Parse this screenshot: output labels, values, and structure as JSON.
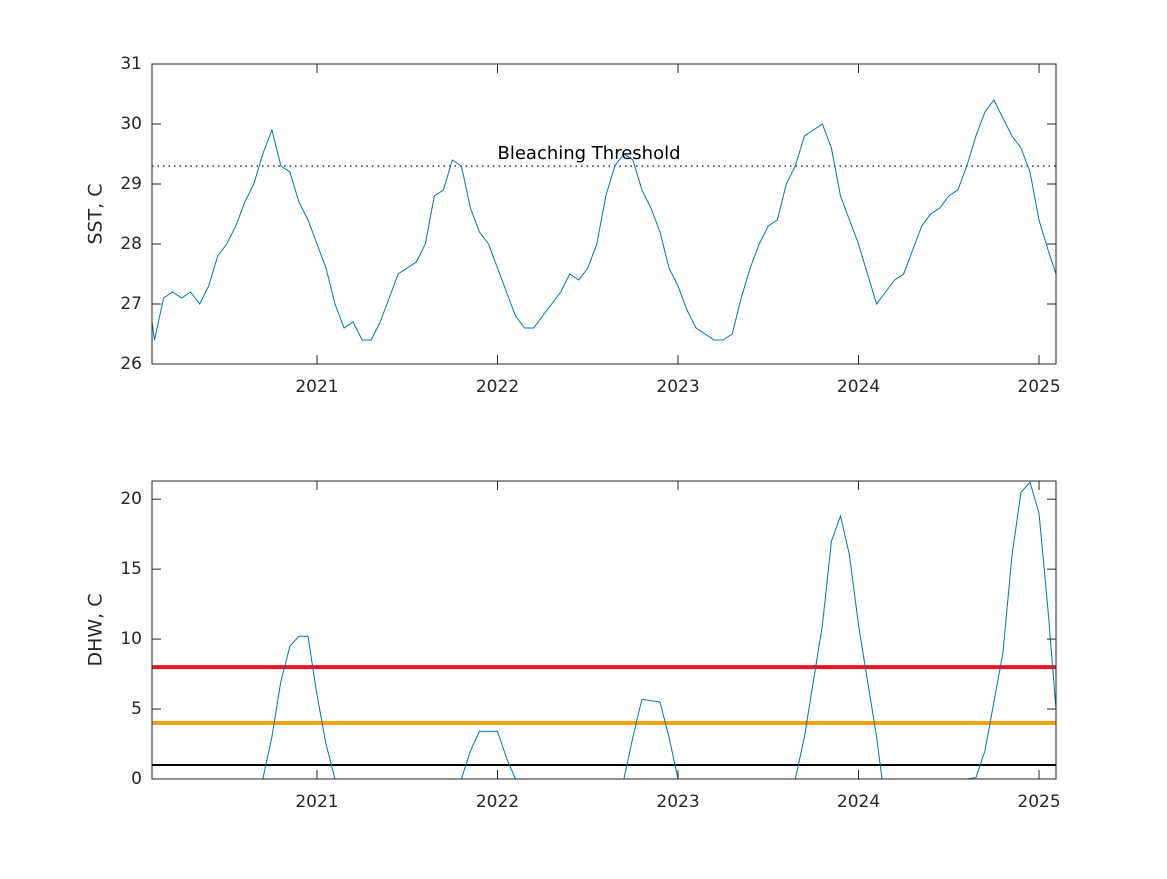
{
  "chart_data": [
    {
      "type": "line",
      "ylabel": "SST, C",
      "color": "#0072bd",
      "x": [
        2020.086,
        2020.1,
        2020.15,
        2020.2,
        2020.25,
        2020.3,
        2020.35,
        2020.4,
        2020.45,
        2020.5,
        2020.55,
        2020.6,
        2020.65,
        2020.7,
        2020.75,
        2020.8,
        2020.85,
        2020.9,
        2020.95,
        2021.0,
        2021.05,
        2021.1,
        2021.15,
        2021.2,
        2021.25,
        2021.3,
        2021.35,
        2021.4,
        2021.45,
        2021.5,
        2021.55,
        2021.6,
        2021.65,
        2021.7,
        2021.75,
        2021.8,
        2021.85,
        2021.9,
        2021.95,
        2022.0,
        2022.05,
        2022.1,
        2022.15,
        2022.2,
        2022.25,
        2022.3,
        2022.35,
        2022.4,
        2022.45,
        2022.5,
        2022.55,
        2022.6,
        2022.65,
        2022.7,
        2022.75,
        2022.8,
        2022.85,
        2022.9,
        2022.95,
        2023.0,
        2023.05,
        2023.1,
        2023.15,
        2023.2,
        2023.25,
        2023.3,
        2023.35,
        2023.4,
        2023.45,
        2023.5,
        2023.55,
        2023.6,
        2023.65,
        2023.7,
        2023.75,
        2023.8,
        2023.85,
        2023.9,
        2023.95,
        2024.0,
        2024.05,
        2024.1,
        2024.15,
        2024.2,
        2024.25,
        2024.3,
        2024.35,
        2024.4,
        2024.45,
        2024.5,
        2024.55,
        2024.6,
        2024.65,
        2024.7,
        2024.75,
        2024.8,
        2024.85,
        2024.9,
        2024.95,
        2025.0,
        2025.05,
        2025.094
      ],
      "values": [
        26.7,
        26.4,
        27.1,
        27.2,
        27.1,
        27.2,
        27.0,
        27.3,
        27.8,
        28.0,
        28.3,
        28.7,
        29.0,
        29.5,
        29.9,
        29.3,
        29.2,
        28.7,
        28.4,
        28.0,
        27.6,
        27.0,
        26.6,
        26.7,
        26.4,
        26.4,
        26.7,
        27.1,
        27.5,
        27.6,
        27.7,
        28.0,
        28.8,
        28.9,
        29.4,
        29.3,
        28.6,
        28.2,
        28.0,
        27.6,
        27.2,
        26.8,
        26.6,
        26.6,
        26.8,
        27.0,
        27.2,
        27.5,
        27.4,
        27.6,
        28.0,
        28.8,
        29.3,
        29.5,
        29.4,
        28.9,
        28.6,
        28.2,
        27.6,
        27.3,
        26.9,
        26.6,
        26.5,
        26.4,
        26.4,
        26.5,
        27.1,
        27.6,
        28.0,
        28.3,
        28.4,
        29.0,
        29.3,
        29.8,
        29.9,
        30.0,
        29.6,
        28.8,
        28.4,
        28.0,
        27.5,
        27.0,
        27.2,
        27.4,
        27.5,
        27.9,
        28.3,
        28.5,
        28.6,
        28.8,
        28.9,
        29.3,
        29.8,
        30.2,
        30.4,
        30.1,
        29.8,
        29.6,
        29.2,
        28.4,
        27.9,
        27.5
      ],
      "xlim": [
        2020.086,
        2025.094
      ],
      "xticks": [
        2021,
        2022,
        2023,
        2024,
        2025
      ],
      "ylim": [
        26,
        31
      ],
      "yticks": [
        26,
        27,
        28,
        29,
        30,
        31
      ],
      "hlines": [
        {
          "value": 29.3,
          "color": "#000080",
          "style": "dotted"
        }
      ],
      "annotation": {
        "text": "Bleaching Threshold",
        "x": 2022.0,
        "y": 29.5
      }
    },
    {
      "type": "line",
      "ylabel": "DHW, C",
      "color": "#0072bd",
      "x": [
        2020.086,
        2020.7,
        2020.75,
        2020.8,
        2020.85,
        2020.9,
        2020.95,
        2021.0,
        2021.05,
        2021.1,
        2021.8,
        2021.85,
        2021.9,
        2022.0,
        2022.05,
        2022.1,
        2022.7,
        2022.75,
        2022.8,
        2022.9,
        2022.95,
        2023.0,
        2023.65,
        2023.7,
        2023.8,
        2023.85,
        2023.9,
        2023.95,
        2024.0,
        2024.1,
        2024.13,
        2024.6,
        2024.65,
        2024.7,
        2024.8,
        2024.85,
        2024.9,
        2024.95,
        2025.0,
        2025.05,
        2025.094
      ],
      "values": [
        0,
        0,
        3,
        7,
        9.5,
        10.2,
        10.2,
        6,
        2.5,
        0,
        0,
        2,
        3.4,
        3.4,
        1.5,
        0,
        0,
        3,
        5.7,
        5.5,
        3,
        0,
        0,
        3,
        11,
        17,
        18.8,
        16,
        11,
        3,
        0,
        0,
        0.1,
        2,
        9,
        16,
        20.5,
        21.2,
        19,
        12,
        5
      ],
      "xlim": [
        2020.086,
        2025.094
      ],
      "xticks": [
        2021,
        2022,
        2023,
        2024,
        2025
      ],
      "ylim": [
        0,
        21.3
      ],
      "yticks": [
        0,
        5,
        10,
        15,
        20
      ],
      "hlines": [
        {
          "value": 8,
          "color": "#e8141e",
          "style": "solid"
        },
        {
          "value": 4,
          "color": "#f0a30a",
          "style": "solid"
        },
        {
          "value": 1,
          "color": "#000000",
          "style": "thin"
        }
      ]
    }
  ]
}
